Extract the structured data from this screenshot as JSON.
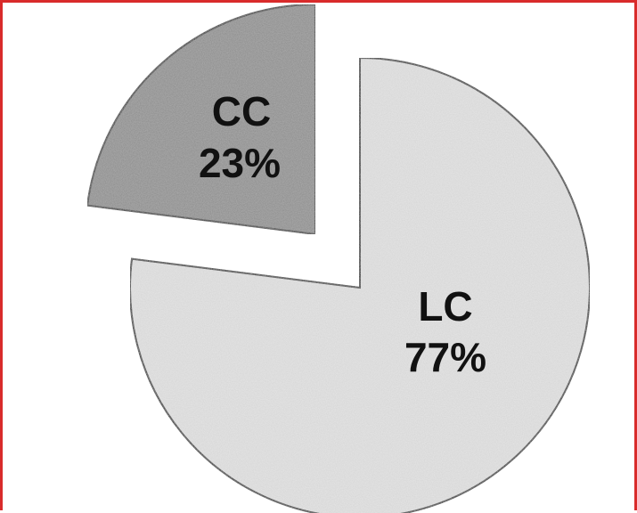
{
  "chart_data": {
    "type": "pie",
    "title": "",
    "slices": [
      {
        "label": "CC",
        "value": 23,
        "value_label": "23%",
        "color": "#8a8a8a",
        "exploded": true
      },
      {
        "label": "LC",
        "value": 77,
        "value_label": "77%",
        "color": "#e6e6e6",
        "exploded": false
      }
    ]
  },
  "colors": {
    "frame_border": "#d92b2b",
    "slice_outline": "#1a1a1a"
  }
}
